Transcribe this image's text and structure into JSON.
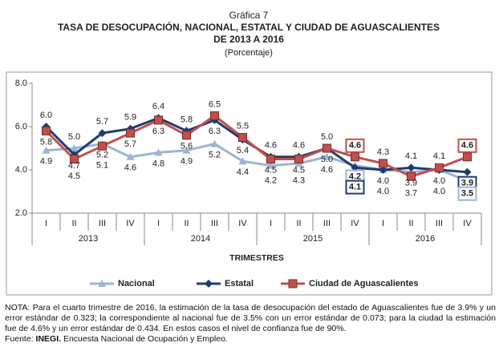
{
  "chart_data": {
    "type": "line",
    "title": "Gráfica 7",
    "subtitle": [
      "TASA DE DESOCUPACIÓN,  NACIONAL,  ESTATAL Y CIUDAD  DE AGUASCALIENTES",
      "DE 2013 A 2016"
    ],
    "unit": "(Porcentaje)",
    "x_label": "TRIMESTRES",
    "categories": [
      "I",
      "II",
      "III",
      "IV",
      "I",
      "II",
      "III",
      "IV",
      "I",
      "II",
      "III",
      "IV",
      "I",
      "II",
      "III",
      "IV"
    ],
    "groups": [
      {
        "label": "2013",
        "size": 4
      },
      {
        "label": "2014",
        "size": 4
      },
      {
        "label": "2015",
        "size": 4
      },
      {
        "label": "2016",
        "size": 4
      }
    ],
    "ylim": [
      2,
      8
    ],
    "yticks": [
      {
        "value": 2,
        "label": "2.0"
      },
      {
        "value": 4,
        "label": "4.0"
      },
      {
        "value": 6,
        "label": "6.0"
      },
      {
        "value": 8,
        "label": "8.0"
      }
    ],
    "grid": false,
    "series": [
      {
        "name": "Nacional",
        "color": "#9cb4d4",
        "marker": "triangle",
        "values": [
          4.9,
          5.0,
          5.2,
          4.6,
          4.8,
          4.9,
          5.2,
          4.4,
          4.2,
          4.3,
          4.6,
          4.2,
          4.0,
          3.9,
          4.0,
          3.5
        ],
        "value_labels": [
          "4.9",
          "5.0",
          "5.2",
          "4.6",
          "4.8",
          "4.9",
          "5.2",
          "4.4",
          "4.2",
          "4.3",
          "4.6",
          "4.2",
          "4.0",
          "3.9",
          "4.0",
          "3.5"
        ]
      },
      {
        "name": "Estatal",
        "color": "#1f3c6e",
        "marker": "diamond",
        "values": [
          6.0,
          4.7,
          5.7,
          5.9,
          6.4,
          5.8,
          6.3,
          5.4,
          4.6,
          4.6,
          5.0,
          4.1,
          4.0,
          4.1,
          4.0,
          3.9
        ],
        "value_labels": [
          "6.0",
          "4.7",
          "5.7",
          "5.9",
          "6.4",
          "5.8",
          "6.3",
          "5.4",
          "4.6",
          "4.6",
          "5.0",
          "4.1",
          "4.0",
          "4.1",
          "4.0",
          "3.9"
        ]
      },
      {
        "name": "Ciudad de Aguascalientes",
        "color": "#c0504d",
        "marker": "square",
        "values": [
          5.8,
          4.5,
          5.1,
          5.7,
          6.3,
          5.6,
          6.5,
          5.5,
          4.5,
          4.5,
          5.0,
          4.6,
          4.3,
          3.7,
          4.1,
          4.6
        ],
        "value_labels": [
          "5.8",
          "4.5",
          "5.1",
          "5.7",
          "6.3",
          "5.6",
          "6.5",
          "5.5",
          "4.5",
          "4.5",
          "5.0",
          "4.6",
          "4.3",
          "3.7",
          "4.1",
          "4.6"
        ]
      }
    ]
  },
  "note": "NOTA: Para el cuarto trimestre de 2016, la estimación de la tasa de desocupación del estado de Aguascalientes fue de 3.9% y un error estándar de 0.323; la correspondiente al nacional fue de 3.5% con un error estándar de 0.073; para la ciudad la estimación fue de 4.6% y un error estándar de 0.434. En estos casos el nivel de confianza fue de 90%.",
  "source": {
    "prefix": "Fuente:",
    "org": "INEGI.",
    "text": "Encuesta Nacional de Ocupación y Empleo."
  }
}
